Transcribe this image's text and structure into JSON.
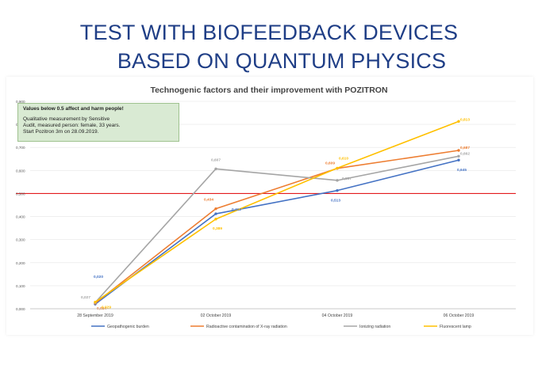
{
  "slide": {
    "title_line1": "TEST WITH BIOFEEDBACK DEVICES",
    "title_line2": "BASED ON QUANTUM PHYSICS"
  },
  "note": {
    "line1": "Values below 0.5 affect and harm people!",
    "line2": "Qualitative measurement by Sensitive",
    "line3": "Audit, measured person: female, 33 years.",
    "line4": "Start Pozitron 3m on 28.09.2019."
  },
  "colors": {
    "title": "#1f3e86",
    "threshold": "#e31a1c",
    "grid": "#e6e6e6"
  },
  "chart_data": {
    "type": "line",
    "title": "Technogenic factors and their improvement with POZITRON",
    "categories": [
      "28 September 2019",
      "02 October 2019",
      "04 October 2019",
      "06 October 2019"
    ],
    "ylim": [
      0,
      0.9
    ],
    "yticks": [
      "0,000",
      "0,100",
      "0,200",
      "0,300",
      "0,400",
      "0,500",
      "0,600",
      "0,700",
      "0,800",
      "0,900"
    ],
    "threshold": 0.5,
    "grid": true,
    "legend_position": "bottom",
    "series": [
      {
        "name": "Geopathogenic burden",
        "color": "#4472c4",
        "values": [
          0.02,
          0.412,
          0.513,
          0.645
        ],
        "labels": [
          "0,020",
          "0,412",
          "0,513",
          "0,645"
        ]
      },
      {
        "name": "Radioactive contamination of X-ray radiation",
        "color": "#ed7d31",
        "values": [
          0.024,
          0.434,
          0.609,
          0.687
        ],
        "labels": [
          "0,024",
          "0,434",
          "0,609",
          "0,687"
        ]
      },
      {
        "name": "Ionizing radiation",
        "color": "#a5a5a5",
        "values": [
          0.027,
          0.607,
          0.557,
          0.662
        ],
        "labels": [
          "0,027",
          "0,607",
          "0,557",
          "0,662"
        ]
      },
      {
        "name": "Fluorescent lamp",
        "color": "#ffc000",
        "values": [
          0.029,
          0.389,
          0.61,
          0.813
        ],
        "labels": [
          "0,029",
          "0,389",
          "0,610",
          "0,813"
        ]
      }
    ]
  }
}
